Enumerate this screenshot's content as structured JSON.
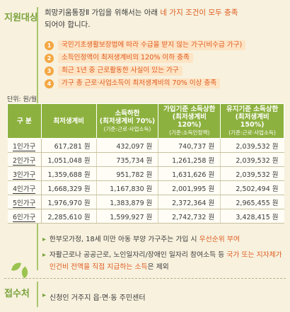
{
  "section1": {
    "label": "지원대상",
    "intro_line1_pre": "희망키움통장Ⅱ 가입을 위해서는 아래 ",
    "intro_line1_hl": "네 가지 조건이 모두 충족",
    "intro_line2": "되어야 합니다.",
    "conditions": [
      {
        "num": "1",
        "text": "국민기초생활보장법에 따라 수급을 받지 않는 가구(비수급 가구)"
      },
      {
        "num": "2",
        "text": "소득인정액이 최저생계비의 120% 이하 충족"
      },
      {
        "num": "3",
        "text": "최근 1년 중 근로활동한 사실이 있는 가구"
      },
      {
        "num": "4",
        "text": "가구 총 근로·사업소득이 최저생계비의 70% 이상 충족"
      }
    ]
  },
  "table": {
    "unit": "단위: 원/월",
    "headers": {
      "c1": "구 분",
      "c2": "최저생계비",
      "c3_main": "소득하한\n(최저생계비 70%)",
      "c3_sub": "(기준:근로·사업소득)",
      "c4_main": "가입기준 소득상한\n(최저생계비 120%)",
      "c4_sub": "(기준:소득인정액)",
      "c5_main": "유지기준 소득상한\n(최저생계비 150%)",
      "c5_sub": "(기준:근로·사업소득)"
    },
    "rows": [
      {
        "label": "1인가구",
        "c2": "617,281 원",
        "c3": "432,097 원",
        "c4": "740,737 원",
        "c5": "2,039,532 원"
      },
      {
        "label": "2인가구",
        "c2": "1,051,048 원",
        "c3": "735,734 원",
        "c4": "1,261,258 원",
        "c5": "2,039,532 원"
      },
      {
        "label": "3인가구",
        "c2": "1,359,688 원",
        "c3": "951,782 원",
        "c4": "1,631,626 원",
        "c5": "2,039,532 원"
      },
      {
        "label": "4인가구",
        "c2": "1,668,329 원",
        "c3": "1,167,830 원",
        "c4": "2,001,995 원",
        "c5": "2,502,494 원"
      },
      {
        "label": "5인가구",
        "c2": "1,976,970 원",
        "c3": "1,383,879 원",
        "c4": "2,372,364 원",
        "c5": "2,965,455 원"
      },
      {
        "label": "6인가구",
        "c2": "2,285,610 원",
        "c3": "1,599,927 원",
        "c4": "2,742,732 원",
        "c5": "3,428,415 원"
      }
    ]
  },
  "notes": {
    "n1_pre": "한부모가정, 18세 미만 아동 부양 가구주는 가입 시 ",
    "n1_hl": "우선순위 부여",
    "n2_pre": "자활근로나 공공근로, 노인일자리/장애인 일자리 참여소득 등 ",
    "n2_hl": "국가 또는 지자체가 인건비 전액을 직접 지급하는 소득",
    "n2_post": "은 제외"
  },
  "section2": {
    "label": "접수처",
    "text": "신청인 거주지 읍·면·동 주민센터"
  }
}
